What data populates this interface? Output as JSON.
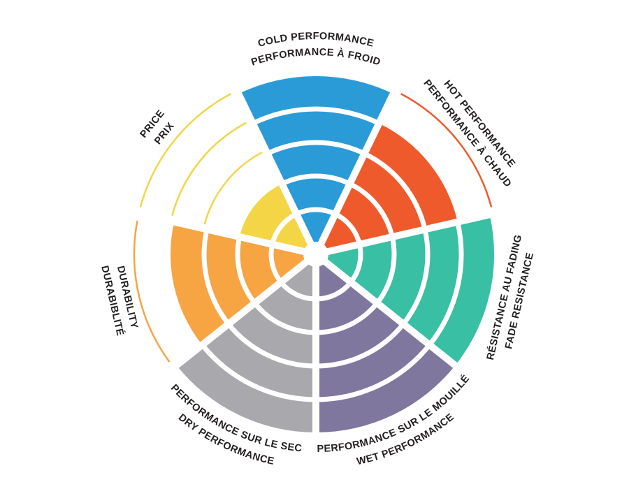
{
  "page": {
    "background": "#FFFFFF",
    "text_color": "#231F20"
  },
  "chart_data": {
    "type": "radial-bar",
    "description": "Seven-sector tyre/brake performance wheel. Each sector is filled outward to its rating on a 5-ring scale; unfilled ring levels are drawn as thin outline arcs in the sector color. Labels are bilingual (English / French).",
    "scale": {
      "min": 0,
      "max": 5,
      "rings": 5
    },
    "grid": "concentric-rings-with-radial-gaps",
    "legend_position": "none",
    "categories": [
      {
        "id": "cold-performance",
        "label_en": "COLD PERFORMANCE",
        "label_fr": "PERFORMANCE À FROID",
        "value": 5,
        "color": "#2B9BD7",
        "label_style": "curved",
        "outer_line": "en"
      },
      {
        "id": "hot-performance",
        "label_en": "HOT PERFORMANCE",
        "label_fr": "PERFORMANCE À CHAUD",
        "value": 4,
        "color": "#EF5A2D",
        "label_style": "straight",
        "outer_line": "en"
      },
      {
        "id": "fade-resistance",
        "label_en": "FADE RESISTANCE",
        "label_fr": "RÉSISTANCE AU FADING",
        "value": 5,
        "color": "#39BFA3",
        "label_style": "straight",
        "outer_line": "en"
      },
      {
        "id": "wet-performance",
        "label_en": "WET PERFORMANCE",
        "label_fr": "PERFORMANCE SUR LE MOUILLÉ",
        "value": 5,
        "color": "#80779F",
        "label_style": "curved",
        "outer_line": "en"
      },
      {
        "id": "dry-performance",
        "label_en": "DRY PERFORMANCE",
        "label_fr": "PERFORMANCE SUR LE SEC",
        "value": 5,
        "color": "#A9A9AD",
        "label_style": "curved",
        "outer_line": "en"
      },
      {
        "id": "durability",
        "label_en": "DURABILITY",
        "label_fr": "DURABIBLITÉ",
        "value": 4,
        "color": "#F7A443",
        "label_style": "straight",
        "outer_line": "fr"
      },
      {
        "id": "price",
        "label_en": "PRICE",
        "label_fr": "PRIX",
        "value": 2,
        "color": "#F4D546",
        "label_style": "straight",
        "outer_line": "en"
      }
    ]
  }
}
